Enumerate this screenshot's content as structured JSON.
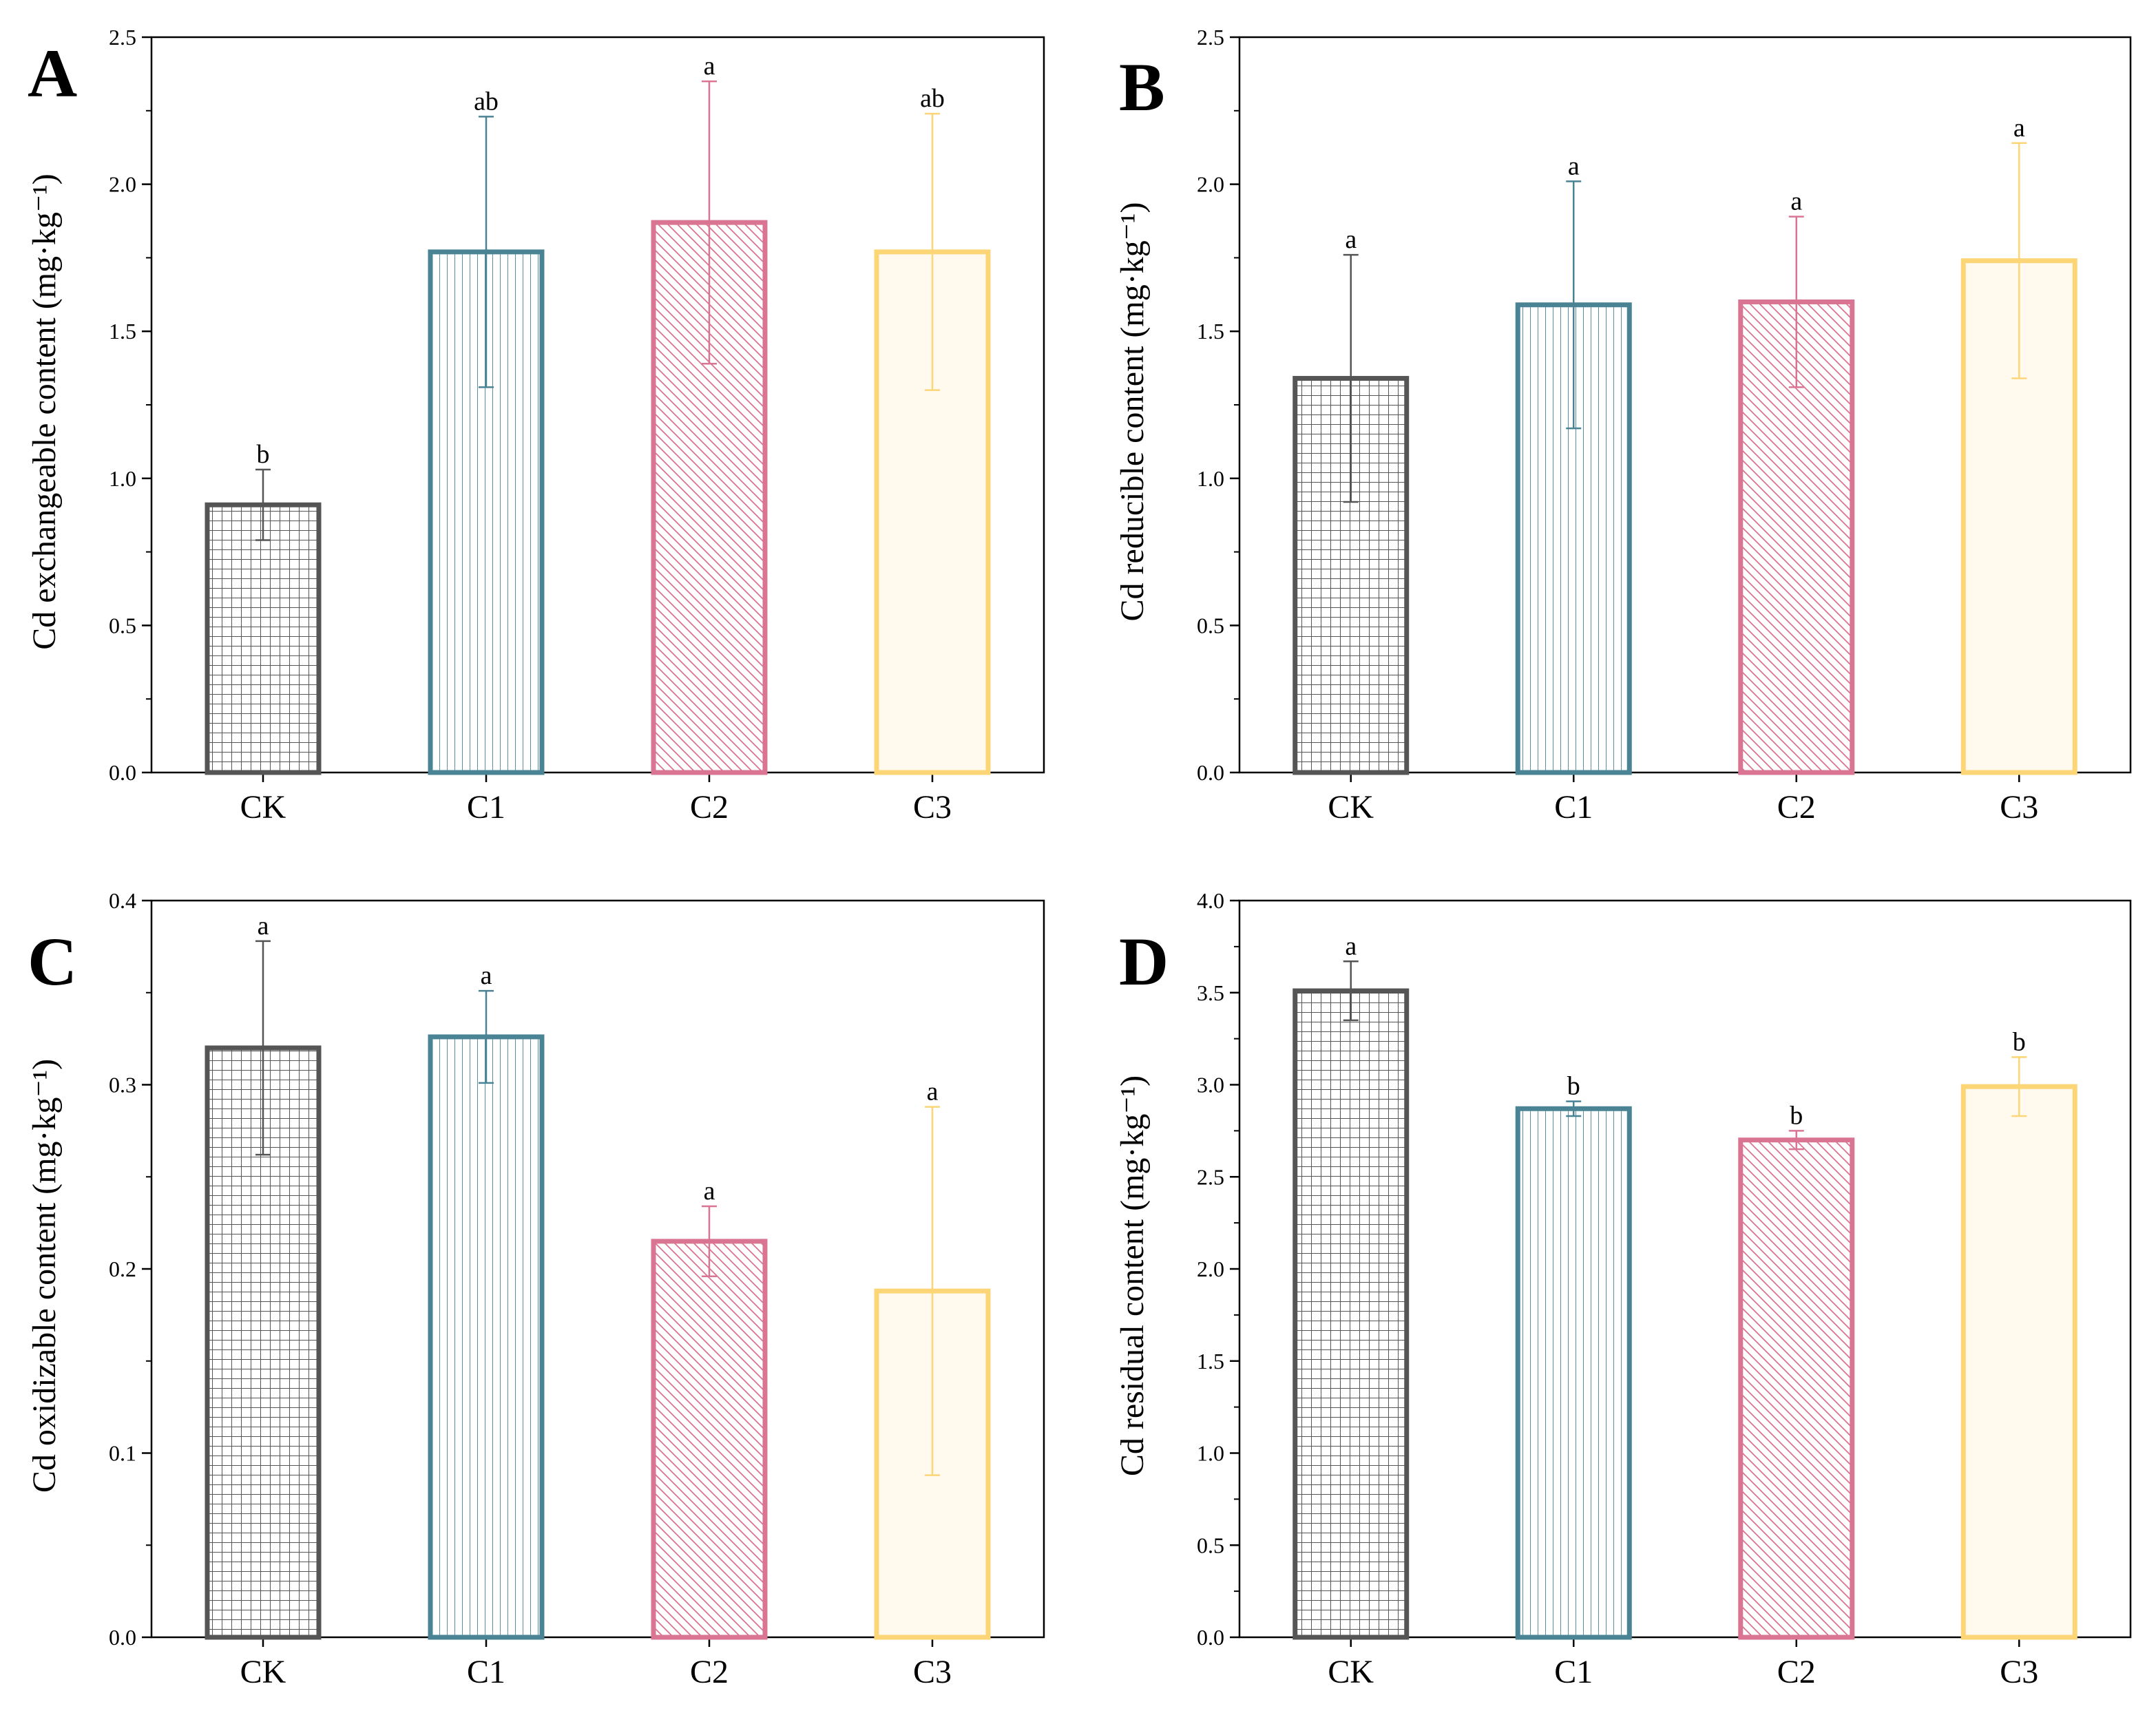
{
  "figure": {
    "panels": [
      {
        "id": "A",
        "letter": "A"
      },
      {
        "id": "B",
        "letter": "B"
      },
      {
        "id": "C",
        "letter": "C"
      },
      {
        "id": "D",
        "letter": "D"
      }
    ]
  },
  "styles": {
    "CK": {
      "color": "#555555",
      "fill": "#ffffff",
      "pattern": "grid"
    },
    "C1": {
      "color": "#4a8494",
      "fill": "#ffffff",
      "pattern": "vertical"
    },
    "C2": {
      "color": "#d97592",
      "fill": "#ffffff",
      "pattern": "diagonal"
    },
    "C3": {
      "color": "#fcd577",
      "fill": "#fffaed",
      "pattern": "none"
    }
  },
  "chart_data": [
    {
      "panel": "A",
      "type": "bar",
      "ylabel": "Cd exchangeable content (mg·kg⁻¹)",
      "categories": [
        "CK",
        "C1",
        "C2",
        "C3"
      ],
      "values": [
        0.91,
        1.77,
        1.87,
        1.77
      ],
      "errors": [
        0.12,
        0.46,
        0.48,
        0.47
      ],
      "significance": [
        "b",
        "ab",
        "a",
        "ab"
      ],
      "ylim": [
        0,
        2.5
      ],
      "yticks": [
        0.0,
        0.5,
        1.0,
        1.5,
        2.0,
        2.5
      ],
      "ytick_labels": [
        "0.0",
        "0.5",
        "1.0",
        "1.5",
        "2.0",
        "2.5"
      ]
    },
    {
      "panel": "B",
      "type": "bar",
      "ylabel": "Cd reducible content (mg·kg⁻¹)",
      "categories": [
        "CK",
        "C1",
        "C2",
        "C3"
      ],
      "values": [
        1.34,
        1.59,
        1.6,
        1.74
      ],
      "errors": [
        0.42,
        0.42,
        0.29,
        0.4
      ],
      "significance": [
        "a",
        "a",
        "a",
        "a"
      ],
      "ylim": [
        0,
        2.5
      ],
      "yticks": [
        0.0,
        0.5,
        1.0,
        1.5,
        2.0,
        2.5
      ],
      "ytick_labels": [
        "0.0",
        "0.5",
        "1.0",
        "1.5",
        "2.0",
        "2.5"
      ]
    },
    {
      "panel": "C",
      "type": "bar",
      "ylabel": "Cd oxidizable content (mg·kg⁻¹)",
      "categories": [
        "CK",
        "C1",
        "C2",
        "C3"
      ],
      "values": [
        0.32,
        0.326,
        0.215,
        0.188
      ],
      "errors": [
        0.058,
        0.025,
        0.019,
        0.1
      ],
      "significance": [
        "a",
        "a",
        "a",
        "a"
      ],
      "ylim": [
        0,
        0.4
      ],
      "yticks": [
        0.0,
        0.1,
        0.2,
        0.3,
        0.4
      ],
      "ytick_labels": [
        "0.0",
        "0.1",
        "0.2",
        "0.3",
        "0.4"
      ]
    },
    {
      "panel": "D",
      "type": "bar",
      "ylabel": "Cd residual content (mg·kg⁻¹)",
      "categories": [
        "CK",
        "C1",
        "C2",
        "C3"
      ],
      "values": [
        3.51,
        2.87,
        2.7,
        2.99
      ],
      "errors": [
        0.16,
        0.04,
        0.05,
        0.16
      ],
      "significance": [
        "a",
        "b",
        "b",
        "b"
      ],
      "ylim": [
        0,
        4.0
      ],
      "yticks": [
        0.0,
        0.5,
        1.0,
        1.5,
        2.0,
        2.5,
        3.0,
        3.5,
        4.0
      ],
      "ytick_labels": [
        "0.0",
        "0.5",
        "1.0",
        "1.5",
        "2.0",
        "2.5",
        "3.0",
        "3.5",
        "4.0"
      ]
    }
  ]
}
